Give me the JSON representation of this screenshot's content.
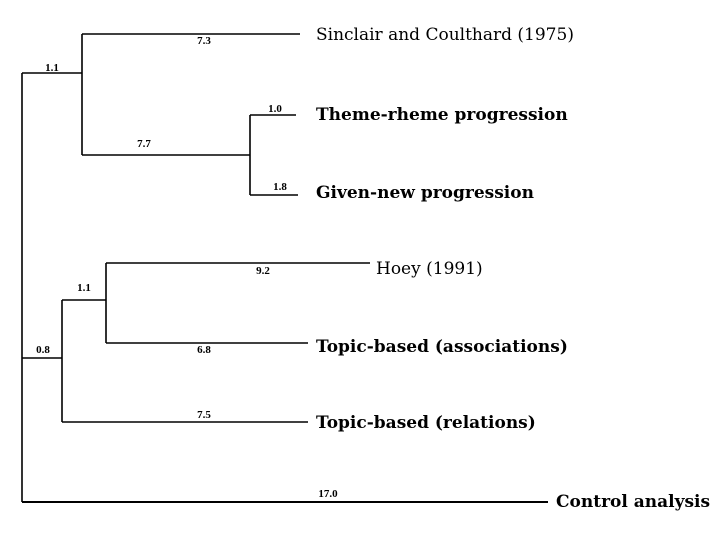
{
  "tree": {
    "leaves": [
      {
        "id": "sinclair",
        "label": "Sinclair and Coulthard (1975)",
        "bold": false
      },
      {
        "id": "theme",
        "label": "Theme-rheme progression",
        "bold": true
      },
      {
        "id": "given",
        "label": "Given-new progression",
        "bold": true
      },
      {
        "id": "hoey",
        "label": "Hoey (1991)",
        "bold": false
      },
      {
        "id": "topic_assoc",
        "label": "Topic-based (associations)",
        "bold": true
      },
      {
        "id": "topic_rel",
        "label": "Topic-based (relations)",
        "bold": true
      },
      {
        "id": "control",
        "label": "Control analysis",
        "bold": true
      }
    ],
    "branch_lengths": {
      "root_to_group_a": "1.1",
      "group_a_to_sinclair": "7.3",
      "group_a_to_theme_given": "7.7",
      "theme_given_to_theme": "1.0",
      "theme_given_to_given": "1.8",
      "root_to_group_b": "0.8",
      "group_b_to_hoey_topic": "1.1",
      "hoey_topic_to_hoey": "9.2",
      "hoey_topic_to_topic_assoc": "6.8",
      "group_b_to_topic_rel": "7.5",
      "root_to_control": "17.0"
    }
  }
}
